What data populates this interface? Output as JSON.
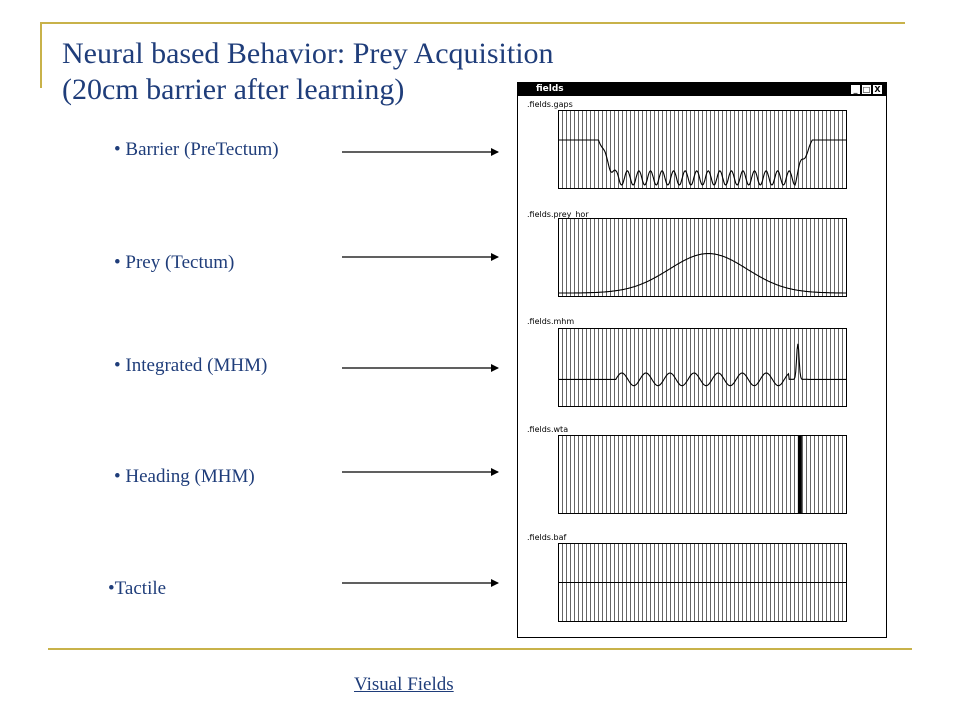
{
  "slide": {
    "title_line1": "Neural based Behavior: Prey Acquisition",
    "title_line2": "(20cm barrier after learning)",
    "bullets": [
      "• Barrier (PreTectum)",
      "• Prey (Tectum)",
      "• Integrated (MHM)",
      "• Heading (MHM)",
      "•Tactile"
    ],
    "footer_link": "Visual Fields"
  },
  "window": {
    "title": "fields",
    "buttons": [
      "_",
      "□",
      "X"
    ],
    "plots": [
      {
        "label": ".fields.gaps",
        "signal": "barrier"
      },
      {
        "label": ".fields.prey_hor",
        "signal": "gaussian"
      },
      {
        "label": ".fields.mhm",
        "signal": "integrated"
      },
      {
        "label": ".fields.wta",
        "signal": "wta"
      },
      {
        "label": ".fields.baf",
        "signal": "flat"
      }
    ]
  },
  "colors": {
    "title": "#1f3d7a",
    "accent_lines": "#c8b24a"
  }
}
